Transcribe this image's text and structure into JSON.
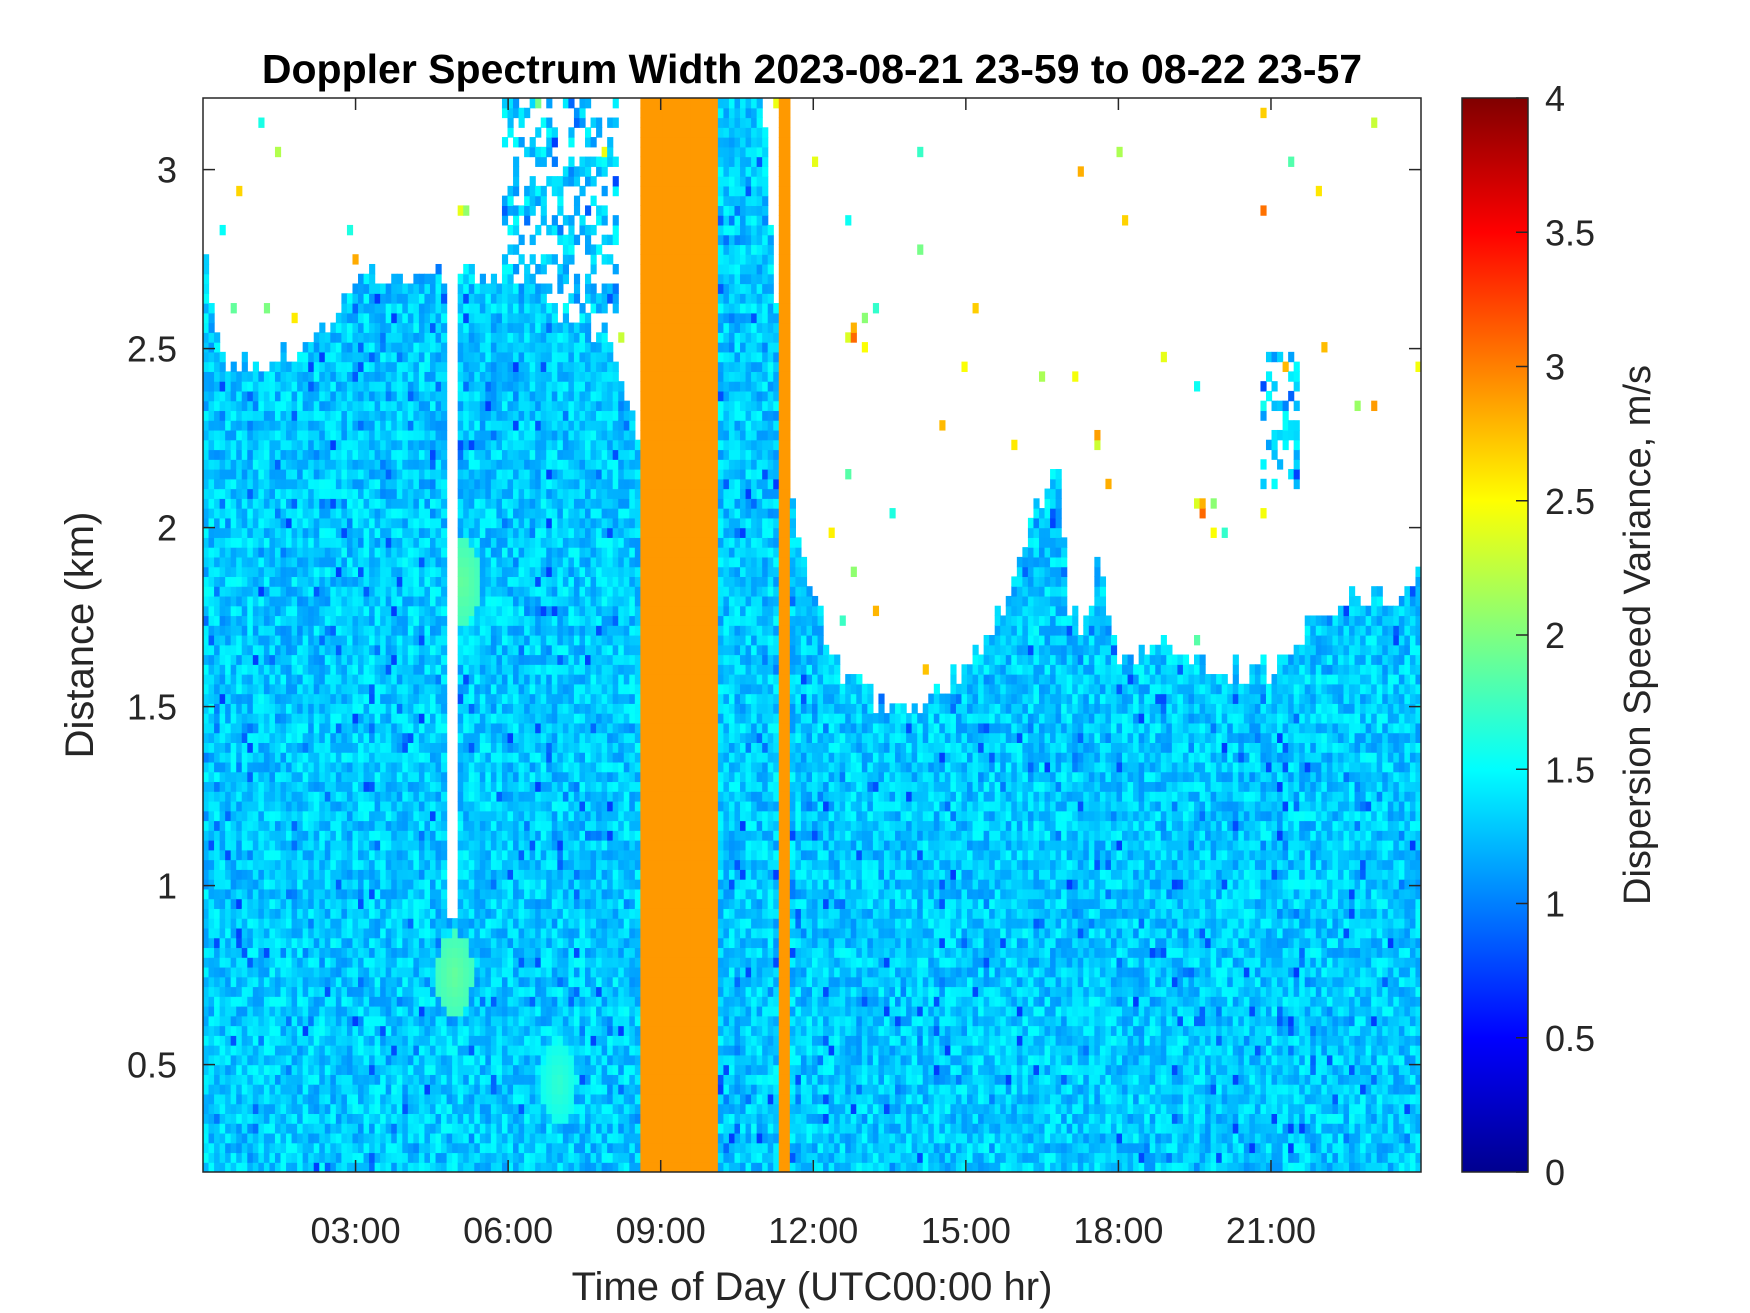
{
  "chart_data": {
    "type": "heatmap",
    "title": "Doppler Spectrum Width 2023-08-21 23-59 to 08-22 23-57",
    "xlabel": "Time of Day (UTC00:00 hr)",
    "ylabel": "Distance (km)",
    "colorbar_label": "Dispersion Speed Variance, m/s",
    "colormap": "jet",
    "xlim_hours": [
      0.0,
      23.95
    ],
    "ylim_km": [
      0.2,
      3.2
    ],
    "clim": [
      0,
      4
    ],
    "x_ticks": [
      {
        "value": 3,
        "label": "03:00"
      },
      {
        "value": 6,
        "label": "06:00"
      },
      {
        "value": 9,
        "label": "09:00"
      },
      {
        "value": 12,
        "label": "12:00"
      },
      {
        "value": 15,
        "label": "15:00"
      },
      {
        "value": 18,
        "label": "18:00"
      },
      {
        "value": 21,
        "label": "21:00"
      }
    ],
    "y_ticks": [
      {
        "value": 0.5,
        "label": "0.5"
      },
      {
        "value": 1,
        "label": "1"
      },
      {
        "value": 1.5,
        "label": "1.5"
      },
      {
        "value": 2,
        "label": "2"
      },
      {
        "value": 2.5,
        "label": "2.5"
      },
      {
        "value": 3,
        "label": "3"
      }
    ],
    "colorbar_ticks": [
      {
        "value": 0,
        "label": "0"
      },
      {
        "value": 0.5,
        "label": "0.5"
      },
      {
        "value": 1,
        "label": "1"
      },
      {
        "value": 1.5,
        "label": "1.5"
      },
      {
        "value": 2,
        "label": "2"
      },
      {
        "value": 2.5,
        "label": "2.5"
      },
      {
        "value": 3,
        "label": "3"
      },
      {
        "value": 3.5,
        "label": "3.5"
      },
      {
        "value": 4,
        "label": "4"
      }
    ],
    "typical_value_ms": 1.3,
    "echo_top_km": [
      [
        0.0,
        2.8
      ],
      [
        0.3,
        2.5
      ],
      [
        0.8,
        2.45
      ],
      [
        1.5,
        2.5
      ],
      [
        2.0,
        2.5
      ],
      [
        2.7,
        2.6
      ],
      [
        3.0,
        2.7
      ],
      [
        3.5,
        2.7
      ],
      [
        4.0,
        2.7
      ],
      [
        4.4,
        2.7
      ],
      [
        5.0,
        2.7
      ],
      [
        5.5,
        2.7
      ],
      [
        6.0,
        2.7
      ],
      [
        6.5,
        2.7
      ],
      [
        7.0,
        2.6
      ],
      [
        7.5,
        2.6
      ],
      [
        8.0,
        2.5
      ],
      [
        8.5,
        2.3
      ],
      [
        8.75,
        2.0
      ],
      [
        9.5,
        3.2
      ],
      [
        10.0,
        3.2
      ],
      [
        10.5,
        3.2
      ],
      [
        11.0,
        3.2
      ],
      [
        11.5,
        2.1
      ],
      [
        12.0,
        1.8
      ],
      [
        12.5,
        1.6
      ],
      [
        13.0,
        1.55
      ],
      [
        13.5,
        1.5
      ],
      [
        14.0,
        1.5
      ],
      [
        14.5,
        1.55
      ],
      [
        15.0,
        1.6
      ],
      [
        15.5,
        1.7
      ],
      [
        16.0,
        1.9
      ],
      [
        16.5,
        2.1
      ],
      [
        16.8,
        2.2
      ],
      [
        17.0,
        1.8
      ],
      [
        17.3,
        1.7
      ],
      [
        17.6,
        1.9
      ],
      [
        18.0,
        1.6
      ],
      [
        18.5,
        1.65
      ],
      [
        19.0,
        1.7
      ],
      [
        19.5,
        1.65
      ],
      [
        20.0,
        1.6
      ],
      [
        20.5,
        1.6
      ],
      [
        21.0,
        1.6
      ],
      [
        21.5,
        1.7
      ],
      [
        22.0,
        1.75
      ],
      [
        22.5,
        1.8
      ],
      [
        23.0,
        1.8
      ],
      [
        23.5,
        1.8
      ],
      [
        23.95,
        1.9
      ]
    ],
    "gaps": [
      {
        "t_start": 4.75,
        "t_end": 5.0,
        "top_km": 3.2,
        "bottom_km": 0.9
      }
    ],
    "uniform_bands": [
      {
        "t_start": 8.65,
        "t_end": 10.1,
        "value_ms": 2.9
      },
      {
        "t_start": 11.3,
        "t_end": 11.5,
        "value_ms": 2.9
      }
    ],
    "upper_echo_patches": [
      {
        "t_start": 5.9,
        "t_end": 8.2,
        "bottom_km": 2.6,
        "top_km": 3.2
      },
      {
        "t_start": 10.1,
        "t_end": 11.0,
        "bottom_km": 2.7,
        "top_km": 3.2
      },
      {
        "t_start": 20.8,
        "t_end": 21.6,
        "bottom_km": 2.1,
        "top_km": 2.5
      }
    ],
    "warm_patches": [
      {
        "t": 5.1,
        "km": 1.85,
        "value_ms": 1.9
      },
      {
        "t": 4.95,
        "km": 0.75,
        "value_ms": 1.9
      },
      {
        "t": 7.0,
        "km": 0.45,
        "value_ms": 1.7
      }
    ]
  }
}
